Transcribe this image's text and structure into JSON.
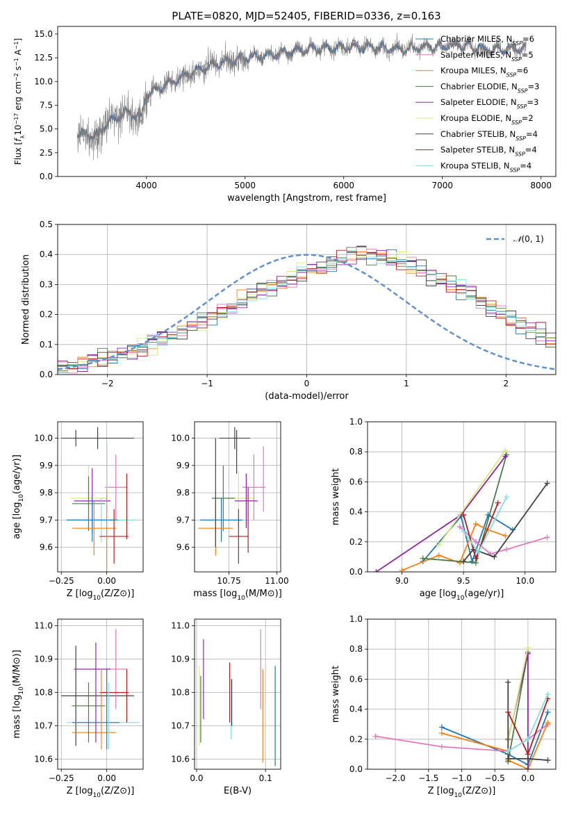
{
  "figure_title": "PLATE=0820, MJD=52405, FIBERID=0336, z=0.163",
  "colors": {
    "data": "#808080",
    "chabrier_miles": "#1f77b4",
    "salpeter_miles": "#e377c2",
    "kroupa_miles": "#ff7f0e",
    "chabrier_elodie": "#4a7c4a",
    "salpeter_elodie": "#8e24aa",
    "kroupa_elodie": "#dce775",
    "chabrier_stelib": "#404040",
    "salpeter_stelib": "#b71c1c",
    "kroupa_stelib": "#80deea",
    "grid": "#b0b0b0",
    "gauss": "#5b8fd6"
  },
  "chart_data": [
    {
      "id": "spectrum",
      "type": "line",
      "title": "PLATE=0820, MJD=52405, FIBERID=0336, z=0.163",
      "xlabel": "wavelength [Angstrom, rest frame]",
      "ylabel": "Flux [f_λ 10^-17 erg cm^-2 s^-1 A^-1]",
      "xlim": [
        3100,
        8150
      ],
      "ylim": [
        0,
        15.8
      ],
      "xticks": [
        4000,
        5000,
        6000,
        7000,
        8000
      ],
      "yticks": [
        0.0,
        2.5,
        5.0,
        7.5,
        10.0,
        12.5,
        15.0
      ],
      "legend_position": "right",
      "continuum": {
        "x": [
          3300,
          3500,
          3600,
          3800,
          3950,
          4000,
          4200,
          4400,
          4600,
          4800,
          5000,
          5200,
          5500,
          5800,
          6000,
          6300,
          6600,
          6900,
          7200,
          7500,
          7800
        ],
        "y": [
          4.5,
          4.3,
          5.6,
          6.8,
          6.3,
          8.6,
          9.6,
          10.7,
          11.5,
          12.1,
          12.5,
          12.7,
          13.2,
          13.5,
          13.6,
          13.6,
          13.4,
          13.7,
          13.8,
          13.3,
          13.5
        ]
      },
      "series": [
        {
          "name": "Chabrier MILES, N_SSP=6",
          "color_key": "chabrier_miles"
        },
        {
          "name": "Salpeter MILES, N_SSP=5",
          "color_key": "salpeter_miles"
        },
        {
          "name": "Kroupa MILES, N_SSP=6",
          "color_key": "kroupa_miles"
        },
        {
          "name": "Chabrier ELODIE, N_SSP=3",
          "color_key": "chabrier_elodie"
        },
        {
          "name": "Salpeter ELODIE, N_SSP=3",
          "color_key": "salpeter_elodie"
        },
        {
          "name": "Kroupa ELODIE, N_SSP=2",
          "color_key": "kroupa_elodie"
        },
        {
          "name": "Chabrier STELIB, N_SSP=4",
          "color_key": "chabrier_stelib"
        },
        {
          "name": "Salpeter STELIB, N_SSP=4",
          "color_key": "salpeter_stelib"
        },
        {
          "name": "Kroupa STELIB, N_SSP=4",
          "color_key": "kroupa_stelib"
        }
      ]
    },
    {
      "id": "residuals",
      "type": "step",
      "xlabel": "(data-model)/error",
      "ylabel": "Normed distribution",
      "xlim": [
        -2.5,
        2.5
      ],
      "ylim": [
        0,
        0.5
      ],
      "xticks": [
        -2,
        -1,
        0,
        1,
        2
      ],
      "yticks": [
        0.0,
        0.1,
        0.2,
        0.3,
        0.4,
        0.5
      ],
      "grid": true,
      "legend_position": "top-right",
      "gauss_label": "N(0,1)",
      "bins": {
        "start": -2.5,
        "width": 0.1,
        "count": 50
      },
      "profile": [
        0.025,
        0.03,
        0.04,
        0.05,
        0.058,
        0.066,
        0.076,
        0.086,
        0.096,
        0.108,
        0.118,
        0.128,
        0.143,
        0.158,
        0.174,
        0.19,
        0.206,
        0.224,
        0.241,
        0.262,
        0.278,
        0.292,
        0.304,
        0.322,
        0.336,
        0.348,
        0.356,
        0.368,
        0.382,
        0.395,
        0.398,
        0.393,
        0.388,
        0.38,
        0.37,
        0.356,
        0.344,
        0.328,
        0.316,
        0.298,
        0.282,
        0.264,
        0.244,
        0.224,
        0.206,
        0.186,
        0.167,
        0.15,
        0.134,
        0.116
      ]
    },
    {
      "id": "age-vs-Z",
      "type": "errorbar",
      "xlabel": "Z [log10(Z/Z⊙)]",
      "ylabel": "age  [log10(age/yr)]",
      "xlim": [
        -0.27,
        0.2
      ],
      "ylim": [
        9.51,
        10.06
      ],
      "xticks": [
        -0.25,
        0.0
      ],
      "yticks": [
        9.6,
        9.7,
        9.8,
        9.9,
        10.0
      ],
      "points": [
        {
          "x": -0.05,
          "y": 10.0,
          "xerr": 0.2,
          "yerr": 0.04,
          "color_key": "chabrier_stelib"
        },
        {
          "x": -0.17,
          "y": 10.0,
          "xerr": 0.0,
          "yerr": 0.03,
          "color_key": "chabrier_stelib"
        },
        {
          "x": 0.05,
          "y": 9.82,
          "xerr": 0.06,
          "yerr": 0.12,
          "color_key": "salpeter_miles"
        },
        {
          "x": -0.1,
          "y": 9.78,
          "xerr": 0.1,
          "yerr": 0.12,
          "color_key": "kroupa_elodie"
        },
        {
          "x": -0.08,
          "y": 9.77,
          "xerr": 0.1,
          "yerr": 0.12,
          "color_key": "salpeter_elodie"
        },
        {
          "x": -0.1,
          "y": 9.76,
          "xerr": 0.09,
          "yerr": 0.1,
          "color_key": "chabrier_elodie"
        },
        {
          "x": -0.03,
          "y": 9.7,
          "xerr": 0.2,
          "yerr": 0.08,
          "color_key": "kroupa_stelib"
        },
        {
          "x": -0.08,
          "y": 9.7,
          "xerr": 0.14,
          "yerr": 0.08,
          "color_key": "chabrier_miles"
        },
        {
          "x": -0.07,
          "y": 9.67,
          "xerr": 0.12,
          "yerr": 0.1,
          "color_key": "kroupa_miles"
        },
        {
          "x": 0.04,
          "y": 9.64,
          "xerr": 0.08,
          "yerr": 0.1,
          "color_key": "salpeter_stelib"
        },
        {
          "x": 0.0,
          "y": 9.7,
          "xerr": 0.0,
          "yerr": 0.27,
          "color_key": "kroupa_miles"
        },
        {
          "x": 0.0,
          "y": 9.9,
          "xerr": 0.0,
          "yerr": 0.09,
          "color_key": "kroupa_stelib"
        },
        {
          "x": 0.11,
          "y": 9.75,
          "xerr": 0.0,
          "yerr": 0.12,
          "color_key": "salpeter_stelib"
        }
      ]
    },
    {
      "id": "age-vs-mass",
      "type": "errorbar",
      "xlabel": "mass [log10(M/M⊙)]",
      "ylabel": "",
      "xlim": [
        10.57,
        11.02
      ],
      "ylim": [
        9.51,
        10.06
      ],
      "xticks": [
        10.75,
        11.0
      ],
      "yticks": [
        9.6,
        9.7,
        9.8,
        9.9,
        10.0
      ],
      "points": [
        {
          "x": 10.78,
          "y": 10.0,
          "xerr": 0.08,
          "yerr": 0.04,
          "color_key": "chabrier_stelib"
        },
        {
          "x": 10.88,
          "y": 9.82,
          "xerr": 0.06,
          "yerr": 0.12,
          "color_key": "salpeter_miles"
        },
        {
          "x": 10.8,
          "y": 9.78,
          "xerr": 0.08,
          "yerr": 0.1,
          "color_key": "kroupa_elodie"
        },
        {
          "x": 10.84,
          "y": 9.77,
          "xerr": 0.06,
          "yerr": 0.1,
          "color_key": "salpeter_elodie"
        },
        {
          "x": 10.72,
          "y": 9.78,
          "xerr": 0.06,
          "yerr": 0.12,
          "color_key": "chabrier_elodie"
        },
        {
          "x": 10.71,
          "y": 9.7,
          "xerr": 0.11,
          "yerr": 0.08,
          "color_key": "chabrier_miles"
        },
        {
          "x": 10.68,
          "y": 9.67,
          "xerr": 0.09,
          "yerr": 0.1,
          "color_key": "kroupa_miles"
        },
        {
          "x": 10.8,
          "y": 9.64,
          "xerr": 0.05,
          "yerr": 0.1,
          "color_key": "salpeter_stelib"
        },
        {
          "x": 10.68,
          "y": 9.8,
          "xerr": 0.0,
          "yerr": 0.2,
          "color_key": "chabrier_stelib"
        },
        {
          "x": 10.79,
          "y": 9.95,
          "xerr": 0.0,
          "yerr": 0.08,
          "color_key": "chabrier_stelib"
        },
        {
          "x": 10.85,
          "y": 9.7,
          "xerr": 0.0,
          "yerr": 0.12,
          "color_key": "salpeter_stelib"
        },
        {
          "x": 10.93,
          "y": 9.85,
          "xerr": 0.0,
          "yerr": 0.12,
          "color_key": "salpeter_miles"
        }
      ]
    },
    {
      "id": "massweight-vs-age",
      "type": "line",
      "xlabel": "age  [log10(age/yr)]",
      "ylabel": "mass weight",
      "xlim": [
        8.72,
        10.25
      ],
      "ylim": [
        0,
        1.0
      ],
      "xticks": [
        9.0,
        9.5,
        10.0
      ],
      "yticks": [
        0.0,
        0.2,
        0.4,
        0.6,
        0.8,
        1.0
      ],
      "grid": true,
      "series": [
        {
          "color_key": "chabrier_miles",
          "x": [
            9.17,
            9.48,
            9.57,
            9.7,
            9.9
          ],
          "y": [
            0.07,
            0.37,
            0.07,
            0.38,
            0.28
          ]
        },
        {
          "color_key": "salpeter_miles",
          "x": [
            9.47,
            9.6,
            9.72,
            9.85,
            10.18
          ],
          "y": [
            0.3,
            0.2,
            0.12,
            0.15,
            0.23
          ]
        },
        {
          "color_key": "kroupa_miles",
          "x": [
            9.0,
            9.3,
            9.47,
            9.6,
            9.7,
            9.84
          ],
          "y": [
            0.01,
            0.11,
            0.06,
            0.32,
            0.28,
            0.24
          ]
        },
        {
          "color_key": "chabrier_elodie",
          "x": [
            9.17,
            9.6,
            9.85
          ],
          "y": [
            0.09,
            0.06,
            0.78
          ]
        },
        {
          "color_key": "salpeter_elodie",
          "x": [
            8.79,
            9.48,
            9.84
          ],
          "y": [
            0.0,
            0.38,
            0.77
          ]
        },
        {
          "color_key": "kroupa_elodie",
          "x": [
            9.3,
            9.84
          ],
          "y": [
            0.18,
            0.81
          ]
        },
        {
          "color_key": "chabrier_stelib",
          "x": [
            9.5,
            9.58,
            9.75,
            10.18
          ],
          "y": [
            0.07,
            0.15,
            0.1,
            0.59
          ]
        },
        {
          "color_key": "salpeter_stelib",
          "x": [
            9.5,
            9.6,
            9.78
          ],
          "y": [
            0.38,
            0.09,
            0.46
          ]
        },
        {
          "color_key": "kroupa_stelib",
          "x": [
            9.5,
            9.62,
            9.85
          ],
          "y": [
            0.27,
            0.13,
            0.5
          ]
        }
      ]
    },
    {
      "id": "mass-vs-Z",
      "type": "errorbar",
      "xlabel": "Z [log10(Z/Z⊙)]",
      "ylabel": "mass [log10(M/M⊙)]",
      "xlim": [
        -0.27,
        0.2
      ],
      "ylim": [
        10.57,
        11.02
      ],
      "xticks": [
        -0.25,
        0.0
      ],
      "yticks": [
        10.6,
        10.7,
        10.8,
        10.9,
        11.0
      ],
      "points": [
        {
          "x": -0.05,
          "y": 10.79,
          "xerr": 0.2,
          "yerr": 0.0,
          "color_key": "chabrier_stelib"
        },
        {
          "x": -0.17,
          "y": 10.79,
          "xerr": 0.0,
          "yerr": 0.15,
          "color_key": "chabrier_stelib"
        },
        {
          "x": 0.05,
          "y": 10.87,
          "xerr": 0.06,
          "yerr": 0.12,
          "color_key": "salpeter_miles"
        },
        {
          "x": -0.08,
          "y": 10.87,
          "xerr": 0.1,
          "yerr": 0.0,
          "color_key": "salpeter_elodie"
        },
        {
          "x": -0.1,
          "y": 10.76,
          "xerr": 0.1,
          "yerr": 0.0,
          "color_key": "kroupa_elodie"
        },
        {
          "x": -0.1,
          "y": 10.76,
          "xerr": 0.09,
          "yerr": 0.0,
          "color_key": "chabrier_elodie"
        },
        {
          "x": -0.02,
          "y": 10.71,
          "xerr": 0.2,
          "yerr": 0.0,
          "color_key": "kroupa_stelib"
        },
        {
          "x": -0.06,
          "y": 10.71,
          "xerr": 0.13,
          "yerr": 0.0,
          "color_key": "chabrier_miles"
        },
        {
          "x": -0.07,
          "y": 10.68,
          "xerr": 0.12,
          "yerr": 0.0,
          "color_key": "kroupa_miles"
        },
        {
          "x": 0.04,
          "y": 10.8,
          "xerr": 0.08,
          "yerr": 0.0,
          "color_key": "salpeter_stelib"
        },
        {
          "x": -0.06,
          "y": 10.8,
          "xerr": 0.0,
          "yerr": 0.15,
          "color_key": "salpeter_elodie"
        },
        {
          "x": -0.03,
          "y": 10.75,
          "xerr": 0.0,
          "yerr": 0.12,
          "color_key": "kroupa_miles"
        },
        {
          "x": 0.0,
          "y": 10.75,
          "xerr": 0.0,
          "yerr": 0.12,
          "color_key": "chabrier_miles"
        },
        {
          "x": 0.01,
          "y": 10.73,
          "xerr": 0.0,
          "yerr": 0.1,
          "color_key": "kroupa_stelib"
        },
        {
          "x": 0.11,
          "y": 10.79,
          "xerr": 0.0,
          "yerr": 0.08,
          "color_key": "salpeter_stelib"
        },
        {
          "x": -0.1,
          "y": 10.74,
          "xerr": 0.0,
          "yerr": 0.09,
          "color_key": "chabrier_elodie"
        }
      ]
    },
    {
      "id": "mass-vs-EBV",
      "type": "errorbar",
      "xlabel": "E(B-V)",
      "ylabel": "",
      "xlim": [
        -0.003,
        0.122
      ],
      "ylim": [
        10.57,
        11.02
      ],
      "xticks": [
        0.0,
        0.1
      ],
      "yticks": [
        10.6,
        10.7,
        10.8,
        10.9,
        11.0
      ],
      "points": [
        {
          "x": 0.004,
          "y": 10.76,
          "xerr": 0.0,
          "yerr": 0.12,
          "color_key": "kroupa_elodie"
        },
        {
          "x": 0.006,
          "y": 10.75,
          "xerr": 0.0,
          "yerr": 0.1,
          "color_key": "chabrier_elodie"
        },
        {
          "x": 0.01,
          "y": 10.84,
          "xerr": 0.0,
          "yerr": 0.12,
          "color_key": "salpeter_elodie"
        },
        {
          "x": 0.048,
          "y": 10.8,
          "xerr": 0.0,
          "yerr": 0.09,
          "color_key": "salpeter_stelib"
        },
        {
          "x": 0.05,
          "y": 10.75,
          "xerr": 0.0,
          "yerr": 0.09,
          "color_key": "kroupa_stelib"
        },
        {
          "x": 0.051,
          "y": 10.77,
          "xerr": 0.0,
          "yerr": 0.07,
          "color_key": "chabrier_stelib"
        },
        {
          "x": 0.093,
          "y": 10.87,
          "xerr": 0.0,
          "yerr": 0.12,
          "color_key": "salpeter_miles"
        },
        {
          "x": 0.096,
          "y": 10.73,
          "xerr": 0.0,
          "yerr": 0.14,
          "color_key": "kroupa_miles"
        },
        {
          "x": 0.114,
          "y": 10.73,
          "xerr": 0.0,
          "yerr": 0.15,
          "color_key": "chabrier_miles"
        }
      ]
    },
    {
      "id": "massweight-vs-Z",
      "type": "line",
      "xlabel": "Z [log10(Z/Z⊙)]",
      "ylabel": "mass weight",
      "xlim": [
        -2.42,
        0.42
      ],
      "ylim": [
        0,
        1.0
      ],
      "xticks": [
        -2.0,
        -1.5,
        -1.0,
        -0.5,
        0.0
      ],
      "yticks": [
        0.0,
        0.2,
        0.4,
        0.6,
        0.8,
        1.0
      ],
      "grid": true,
      "series": [
        {
          "color_key": "chabrier_miles",
          "x": [
            -1.3,
            -0.3,
            0.0,
            0.3
          ],
          "y": [
            0.28,
            0.1,
            0.03,
            0.38
          ]
        },
        {
          "color_key": "salpeter_miles",
          "x": [
            -2.3,
            -1.3,
            -0.3,
            0.0,
            0.3
          ],
          "y": [
            0.22,
            0.15,
            0.12,
            0.2,
            0.3
          ]
        },
        {
          "color_key": "kroupa_miles",
          "x": [
            -1.3,
            -0.3,
            -0.3,
            0.0,
            0.3
          ],
          "y": [
            0.24,
            0.12,
            0.06,
            0.0,
            0.31
          ]
        },
        {
          "color_key": "chabrier_elodie",
          "x": [
            -0.3,
            0.0
          ],
          "y": [
            0.05,
            0.78
          ]
        },
        {
          "color_key": "salpeter_elodie",
          "x": [
            -0.3,
            0.0,
            0.0
          ],
          "y": [
            0.2,
            0.77,
            0.0
          ]
        },
        {
          "color_key": "kroupa_elodie",
          "x": [
            -0.3,
            0.0
          ],
          "y": [
            0.19,
            0.81
          ]
        },
        {
          "color_key": "chabrier_stelib",
          "x": [
            -0.3,
            -0.3,
            0.0,
            0.3
          ],
          "y": [
            0.58,
            0.07,
            0.07,
            0.06
          ]
        },
        {
          "color_key": "salpeter_stelib",
          "x": [
            -0.3,
            0.0,
            0.3
          ],
          "y": [
            0.38,
            0.1,
            0.47
          ]
        },
        {
          "color_key": "kroupa_stelib",
          "x": [
            -0.3,
            0.0,
            0.3
          ],
          "y": [
            0.12,
            0.2,
            0.5
          ]
        }
      ]
    }
  ]
}
